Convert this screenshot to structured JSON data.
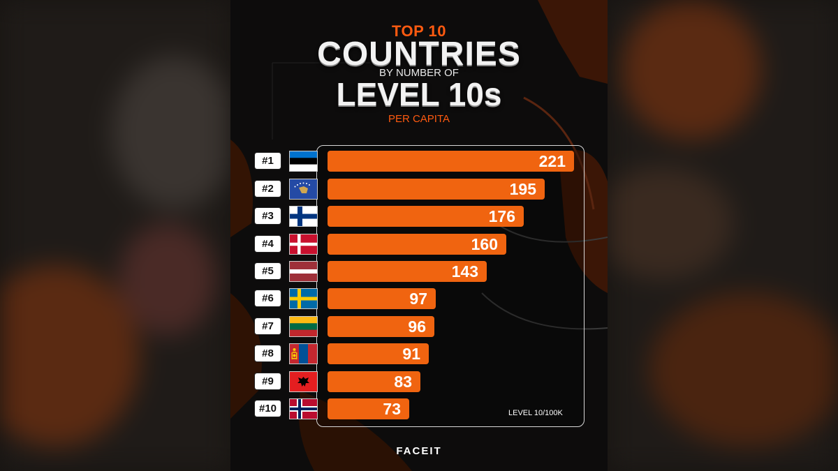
{
  "header": {
    "top_label": "TOP 10",
    "title": "COUNTRIES",
    "by_label": "BY NUMBER OF",
    "subject": "LEVEL 10s",
    "per_capita": "PER CAPITA"
  },
  "chart_data": {
    "type": "bar",
    "orientation": "horizontal",
    "categories": [
      "#1",
      "#2",
      "#3",
      "#4",
      "#5",
      "#6",
      "#7",
      "#8",
      "#9",
      "#10"
    ],
    "values": [
      221,
      195,
      176,
      160,
      143,
      97,
      96,
      91,
      83,
      73
    ],
    "unit_label": "LEVEL 10/100K",
    "xlim": [
      0,
      221
    ],
    "grid": false,
    "bar_color": "#f06410"
  },
  "flags": [
    "estonia-flag",
    "kosovo-flag",
    "finland-flag",
    "denmark-flag",
    "latvia-flag",
    "sweden-flag",
    "lithuania-flag",
    "mongolia-flag",
    "albania-flag",
    "norway-flag"
  ],
  "brand": "FACEIT",
  "colors": {
    "accent": "#ff5a10",
    "background": "#0d0c0c",
    "bar": "#f06410"
  }
}
